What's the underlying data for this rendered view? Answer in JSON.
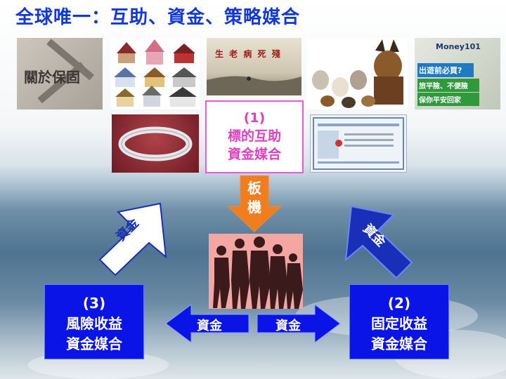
{
  "title": "全球唯一：互助、資金、策略媒合",
  "thumbs": {
    "about": "關於保固",
    "scroll": "生 老 病 死 殘",
    "money101_brand": "Money101",
    "money101_line1": "出遊前必買?",
    "money101_line2": "旅平險、不便險",
    "money101_line3": "保你平安回家"
  },
  "center_box": {
    "num": "(1)",
    "line1": "標的互助",
    "line2": "資金媒合"
  },
  "down_arrow": {
    "c1": "板",
    "c2": "機"
  },
  "left_box": {
    "num": "(3)",
    "line1": "風險收益",
    "line2": "資金媒合"
  },
  "right_box": {
    "num": "(2)",
    "line1": "固定收益",
    "line2": "資金媒合"
  },
  "arrows": {
    "left_h": "資金",
    "right_h": "資金",
    "left_diag": "資金",
    "right_diag": "資金"
  },
  "colors": {
    "title": "#1238d8",
    "blue_box": "#0a14e6",
    "pink": "#e75bd6",
    "orange": "#f07d1e"
  }
}
